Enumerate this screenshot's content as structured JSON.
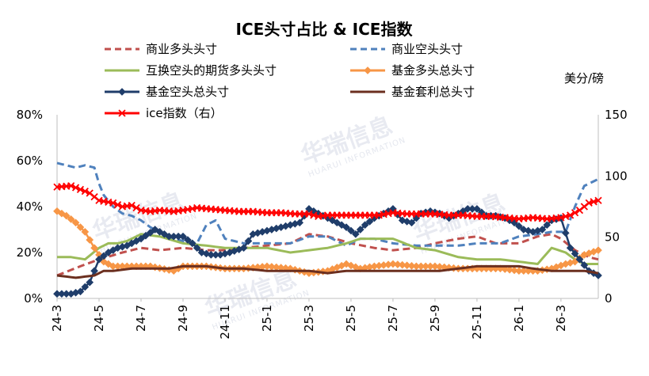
{
  "chart_data": {
    "type": "line",
    "title": "ICE头寸占比 & ICE指数",
    "right_unit": "美分/磅",
    "watermark": {
      "cn": "华瑞信息",
      "en": "HUARUI INFORMATION"
    },
    "left_axis": {
      "min": 0,
      "max": 80,
      "ticks": [
        "0%",
        "20%",
        "40%",
        "60%",
        "80%"
      ],
      "tick_values": [
        0,
        20,
        40,
        60,
        80
      ]
    },
    "right_axis": {
      "min": 0,
      "max": 150,
      "ticks": [
        "0",
        "50",
        "100",
        "150"
      ],
      "tick_values": [
        0,
        50,
        100,
        150
      ]
    },
    "x_ticks": [
      {
        "label": "24-3",
        "index": 0
      },
      {
        "label": "24-5",
        "index": 9
      },
      {
        "label": "24-7",
        "index": 18
      },
      {
        "label": "24-9",
        "index": 27
      },
      {
        "label": "24-11",
        "index": 36
      },
      {
        "label": "25-1",
        "index": 45
      },
      {
        "label": "25-3",
        "index": 54
      },
      {
        "label": "25-5",
        "index": 63
      },
      {
        "label": "25-7",
        "index": 72
      },
      {
        "label": "25-9",
        "index": 81
      },
      {
        "label": "25-11",
        "index": 90
      },
      {
        "label": "26-1",
        "index": 99
      },
      {
        "label": "26-3",
        "index": 108
      }
    ],
    "n_points": 117,
    "grid": false,
    "legend_position": "top",
    "series": [
      {
        "name": "商业多头头寸",
        "axis": "left",
        "color": "#c0504d",
        "style": "dash",
        "marker": "none",
        "anchors": [
          [
            0,
            10
          ],
          [
            5,
            14
          ],
          [
            9,
            17
          ],
          [
            14,
            20
          ],
          [
            18,
            22
          ],
          [
            22,
            21
          ],
          [
            27,
            22
          ],
          [
            32,
            21
          ],
          [
            36,
            21
          ],
          [
            40,
            22
          ],
          [
            45,
            23
          ],
          [
            50,
            24
          ],
          [
            54,
            28
          ],
          [
            58,
            27
          ],
          [
            63,
            24
          ],
          [
            68,
            22
          ],
          [
            72,
            21
          ],
          [
            77,
            22
          ],
          [
            81,
            24
          ],
          [
            86,
            26
          ],
          [
            90,
            27
          ],
          [
            94,
            24
          ],
          [
            99,
            24
          ],
          [
            103,
            27
          ],
          [
            106,
            28
          ],
          [
            108,
            26
          ],
          [
            111,
            21
          ],
          [
            114,
            18
          ],
          [
            116,
            17
          ]
        ]
      },
      {
        "name": "商业空头头寸",
        "axis": "left",
        "color": "#4f81bd",
        "style": "dash",
        "marker": "none",
        "anchors": [
          [
            0,
            59
          ],
          [
            2,
            58
          ],
          [
            4,
            57
          ],
          [
            6,
            58
          ],
          [
            8,
            57
          ],
          [
            9,
            50
          ],
          [
            10,
            45
          ],
          [
            12,
            40
          ],
          [
            14,
            37
          ],
          [
            16,
            36
          ],
          [
            18,
            34
          ],
          [
            20,
            31
          ],
          [
            22,
            29
          ],
          [
            25,
            26
          ],
          [
            27,
            25
          ],
          [
            30,
            24
          ],
          [
            32,
            32
          ],
          [
            34,
            34
          ],
          [
            36,
            26
          ],
          [
            38,
            25
          ],
          [
            40,
            24
          ],
          [
            45,
            24
          ],
          [
            50,
            24
          ],
          [
            54,
            27
          ],
          [
            58,
            27
          ],
          [
            62,
            23
          ],
          [
            65,
            26
          ],
          [
            68,
            26
          ],
          [
            72,
            24
          ],
          [
            77,
            23
          ],
          [
            81,
            23
          ],
          [
            86,
            23
          ],
          [
            90,
            24
          ],
          [
            95,
            24
          ],
          [
            99,
            27
          ],
          [
            103,
            28
          ],
          [
            106,
            29
          ],
          [
            109,
            29
          ],
          [
            111,
            40
          ],
          [
            113,
            49
          ],
          [
            115,
            51
          ],
          [
            116,
            52
          ]
        ]
      },
      {
        "name": "互换空头的期货多头头寸",
        "axis": "left",
        "color": "#9bbb59",
        "style": "solid",
        "marker": "none",
        "anchors": [
          [
            0,
            18
          ],
          [
            3,
            18
          ],
          [
            6,
            17
          ],
          [
            9,
            22
          ],
          [
            11,
            24
          ],
          [
            13,
            24
          ],
          [
            15,
            25
          ],
          [
            18,
            28
          ],
          [
            22,
            27
          ],
          [
            27,
            24
          ],
          [
            32,
            23
          ],
          [
            36,
            22
          ],
          [
            40,
            22
          ],
          [
            45,
            22
          ],
          [
            50,
            20
          ],
          [
            54,
            21
          ],
          [
            58,
            22
          ],
          [
            62,
            24
          ],
          [
            65,
            26
          ],
          [
            68,
            26
          ],
          [
            72,
            26
          ],
          [
            77,
            22
          ],
          [
            81,
            21
          ],
          [
            86,
            18
          ],
          [
            90,
            17
          ],
          [
            95,
            17
          ],
          [
            99,
            16
          ],
          [
            103,
            15
          ],
          [
            106,
            22
          ],
          [
            109,
            20
          ],
          [
            111,
            17
          ],
          [
            113,
            15
          ],
          [
            116,
            15
          ]
        ]
      },
      {
        "name": "基金多头总头寸",
        "axis": "left",
        "color": "#f79646",
        "style": "solid",
        "marker": "diamond",
        "anchors": [
          [
            0,
            38
          ],
          [
            2,
            36
          ],
          [
            4,
            33
          ],
          [
            6,
            29
          ],
          [
            8,
            22
          ],
          [
            10,
            16
          ],
          [
            12,
            14
          ],
          [
            16,
            14
          ],
          [
            20,
            14
          ],
          [
            25,
            12
          ],
          [
            27,
            14
          ],
          [
            32,
            14
          ],
          [
            36,
            13
          ],
          [
            40,
            13
          ],
          [
            45,
            14
          ],
          [
            50,
            13
          ],
          [
            54,
            11
          ],
          [
            58,
            12
          ],
          [
            62,
            15
          ],
          [
            65,
            13
          ],
          [
            68,
            14
          ],
          [
            72,
            15
          ],
          [
            77,
            14
          ],
          [
            81,
            14
          ],
          [
            86,
            13
          ],
          [
            90,
            13
          ],
          [
            95,
            13
          ],
          [
            99,
            12
          ],
          [
            103,
            12
          ],
          [
            106,
            13
          ],
          [
            109,
            15
          ],
          [
            111,
            16
          ],
          [
            113,
            19
          ],
          [
            116,
            21
          ]
        ]
      },
      {
        "name": "基金空头总头寸",
        "axis": "left",
        "color": "#1f3d6a",
        "style": "solid",
        "marker": "diamond",
        "anchors": [
          [
            0,
            2
          ],
          [
            3,
            2
          ],
          [
            5,
            3
          ],
          [
            7,
            7
          ],
          [
            9,
            17
          ],
          [
            11,
            20
          ],
          [
            13,
            22
          ],
          [
            15,
            23
          ],
          [
            18,
            26
          ],
          [
            21,
            30
          ],
          [
            24,
            27
          ],
          [
            27,
            27
          ],
          [
            29,
            24
          ],
          [
            31,
            20
          ],
          [
            33,
            19
          ],
          [
            35,
            19
          ],
          [
            37,
            20
          ],
          [
            40,
            22
          ],
          [
            42,
            28
          ],
          [
            44,
            29
          ],
          [
            46,
            30
          ],
          [
            48,
            31
          ],
          [
            50,
            32
          ],
          [
            52,
            33
          ],
          [
            54,
            39
          ],
          [
            56,
            37
          ],
          [
            58,
            35
          ],
          [
            60,
            33
          ],
          [
            62,
            31
          ],
          [
            64,
            28
          ],
          [
            66,
            32
          ],
          [
            68,
            35
          ],
          [
            70,
            37
          ],
          [
            72,
            39
          ],
          [
            74,
            34
          ],
          [
            76,
            33
          ],
          [
            78,
            37
          ],
          [
            80,
            38
          ],
          [
            82,
            37
          ],
          [
            84,
            35
          ],
          [
            86,
            37
          ],
          [
            88,
            39
          ],
          [
            90,
            39
          ],
          [
            92,
            36
          ],
          [
            94,
            36
          ],
          [
            96,
            35
          ],
          [
            98,
            33
          ],
          [
            100,
            30
          ],
          [
            102,
            29
          ],
          [
            104,
            30
          ],
          [
            106,
            34
          ],
          [
            108,
            35
          ],
          [
            110,
            22
          ],
          [
            112,
            17
          ],
          [
            114,
            12
          ],
          [
            116,
            10
          ]
        ]
      },
      {
        "name": "基金套利总头寸",
        "axis": "left",
        "color": "#6b2f1f",
        "style": "solid",
        "marker": "none",
        "anchors": [
          [
            0,
            10
          ],
          [
            4,
            9
          ],
          [
            8,
            10
          ],
          [
            10,
            12
          ],
          [
            12,
            12
          ],
          [
            16,
            13
          ],
          [
            20,
            13
          ],
          [
            24,
            13
          ],
          [
            27,
            14
          ],
          [
            32,
            14
          ],
          [
            36,
            13
          ],
          [
            40,
            13
          ],
          [
            45,
            12
          ],
          [
            50,
            12
          ],
          [
            54,
            12
          ],
          [
            58,
            11
          ],
          [
            62,
            12
          ],
          [
            66,
            12
          ],
          [
            70,
            12
          ],
          [
            74,
            12
          ],
          [
            78,
            12
          ],
          [
            82,
            12
          ],
          [
            86,
            13
          ],
          [
            90,
            14
          ],
          [
            94,
            14
          ],
          [
            99,
            14
          ],
          [
            102,
            13
          ],
          [
            106,
            12
          ],
          [
            110,
            12
          ],
          [
            113,
            12
          ],
          [
            116,
            11
          ]
        ]
      },
      {
        "name": "ice指数（右）",
        "axis": "right",
        "color": "#ff0000",
        "style": "solid",
        "marker": "x",
        "anchors": [
          [
            0,
            91
          ],
          [
            3,
            92
          ],
          [
            5,
            89
          ],
          [
            7,
            86
          ],
          [
            9,
            80
          ],
          [
            12,
            78
          ],
          [
            14,
            75
          ],
          [
            16,
            76
          ],
          [
            18,
            72
          ],
          [
            20,
            71
          ],
          [
            22,
            72
          ],
          [
            25,
            71
          ],
          [
            27,
            72
          ],
          [
            30,
            74
          ],
          [
            33,
            73
          ],
          [
            36,
            72
          ],
          [
            39,
            71
          ],
          [
            42,
            71
          ],
          [
            45,
            70
          ],
          [
            48,
            70
          ],
          [
            51,
            69
          ],
          [
            54,
            69
          ],
          [
            56,
            67
          ],
          [
            58,
            68
          ],
          [
            60,
            68
          ],
          [
            63,
            68
          ],
          [
            66,
            68
          ],
          [
            69,
            68
          ],
          [
            72,
            70
          ],
          [
            75,
            69
          ],
          [
            78,
            69
          ],
          [
            81,
            69
          ],
          [
            84,
            68
          ],
          [
            87,
            68
          ],
          [
            90,
            67
          ],
          [
            93,
            67
          ],
          [
            96,
            66
          ],
          [
            99,
            65
          ],
          [
            102,
            66
          ],
          [
            105,
            65
          ],
          [
            108,
            66
          ],
          [
            110,
            68
          ],
          [
            112,
            72
          ],
          [
            114,
            78
          ],
          [
            116,
            80
          ]
        ]
      }
    ]
  }
}
